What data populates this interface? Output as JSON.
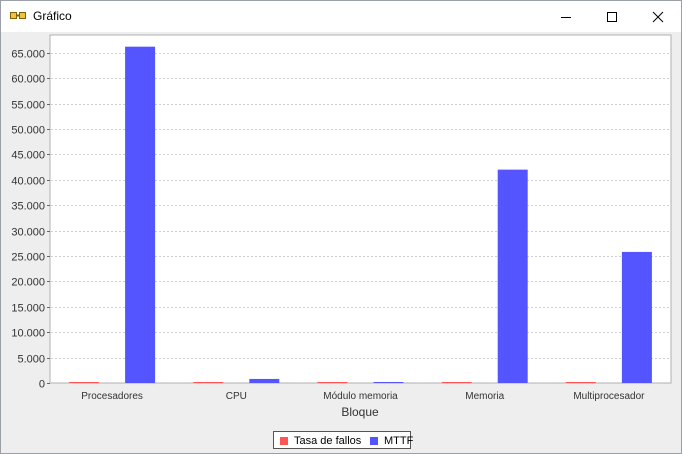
{
  "window": {
    "title": "Gráfico",
    "icon": "chart-app-icon",
    "controls": [
      "minimize-icon",
      "maximize-icon",
      "close-icon"
    ]
  },
  "colors": {
    "tasa_de_fallos": "#ff5555",
    "mttf": "#5555ff",
    "plot_background": "#ffffff",
    "gridline": "#d0d0d0"
  },
  "chart_data": {
    "type": "bar",
    "title": "",
    "xlabel": "Bloque",
    "ylabel": "",
    "categories": [
      "Procesadores",
      "CPU",
      "Módulo memoria",
      "Memoria",
      "Multiprocesador"
    ],
    "series": [
      {
        "name": "Tasa de fallos",
        "values": [
          1.5e-05,
          0.0012,
          1.8e-05,
          2.4e-05,
          3.9e-05
        ]
      },
      {
        "name": "MTTF",
        "values": [
          66200,
          800,
          0,
          42000,
          25800
        ]
      }
    ],
    "ylim": [
      0,
      68500
    ],
    "yticks": [
      0,
      5000,
      10000,
      15000,
      20000,
      25000,
      30000,
      35000,
      40000,
      45000,
      50000,
      55000,
      60000,
      65000
    ],
    "ytick_labels": [
      "0",
      "5.000",
      "10.000",
      "15.000",
      "20.000",
      "25.000",
      "30.000",
      "35.000",
      "40.000",
      "45.000",
      "50.000",
      "55.000",
      "60.000",
      "65.000"
    ],
    "grid": true,
    "legend_position": "bottom-center"
  }
}
